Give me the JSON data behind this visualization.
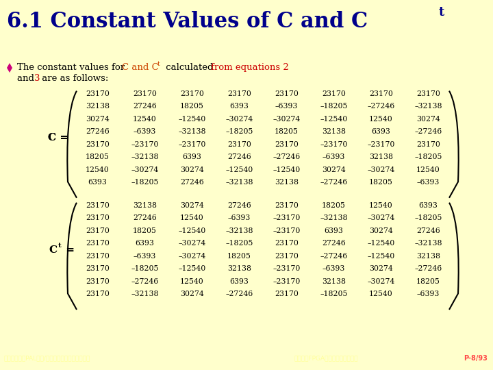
{
  "title_part1": "6.1 Constant Values of C and C",
  "title_superscript": "t",
  "title_color": "#00008B",
  "title_bg_color": "#FFFFCC",
  "header_bar_color": "#CC0080",
  "bg_color": "#FFFFCC",
  "bullet_color": "#CC007A",
  "bullet_text_color": "#000000",
  "orange_text_color": "#CC4400",
  "red_text_color": "#CC0000",
  "footer_left": "教育部顧問室PAL模型/系統模型與軟硬體整合設計",
  "footer_right": "第六章：FPGA分析與軟體介面設計",
  "footer_page": "P-8/93",
  "C_matrix": [
    [
      23170,
      23170,
      23170,
      23170,
      23170,
      23170,
      23170,
      23170
    ],
    [
      32138,
      27246,
      18205,
      6393,
      -6393,
      -18205,
      -27246,
      -32138
    ],
    [
      30274,
      12540,
      -12540,
      -30274,
      -30274,
      -12540,
      12540,
      30274
    ],
    [
      27246,
      -6393,
      -32138,
      -18205,
      18205,
      32138,
      6393,
      -27246
    ],
    [
      23170,
      -23170,
      -23170,
      23170,
      23170,
      -23170,
      -23170,
      23170
    ],
    [
      18205,
      -32138,
      6393,
      27246,
      -27246,
      -6393,
      32138,
      -18205
    ],
    [
      12540,
      -30274,
      30274,
      -12540,
      -12540,
      30274,
      -30274,
      12540
    ],
    [
      6393,
      -18205,
      27246,
      -32138,
      32138,
      -27246,
      18205,
      -6393
    ]
  ],
  "Ct_matrix": [
    [
      23170,
      32138,
      30274,
      27246,
      23170,
      18205,
      12540,
      6393
    ],
    [
      23170,
      27246,
      12540,
      -6393,
      -23170,
      -32138,
      -30274,
      -18205
    ],
    [
      23170,
      18205,
      -12540,
      -32138,
      -23170,
      6393,
      30274,
      27246
    ],
    [
      23170,
      6393,
      -30274,
      -18205,
      23170,
      27246,
      -12540,
      -32138
    ],
    [
      23170,
      -6393,
      -30274,
      18205,
      23170,
      -27246,
      -12540,
      32138
    ],
    [
      23170,
      -18205,
      -12540,
      32138,
      -23170,
      -6393,
      30274,
      -27246
    ],
    [
      23170,
      -27246,
      12540,
      6393,
      -23170,
      32138,
      -30274,
      18205
    ],
    [
      23170,
      -32138,
      30274,
      -27246,
      23170,
      -18205,
      12540,
      -6393
    ]
  ]
}
